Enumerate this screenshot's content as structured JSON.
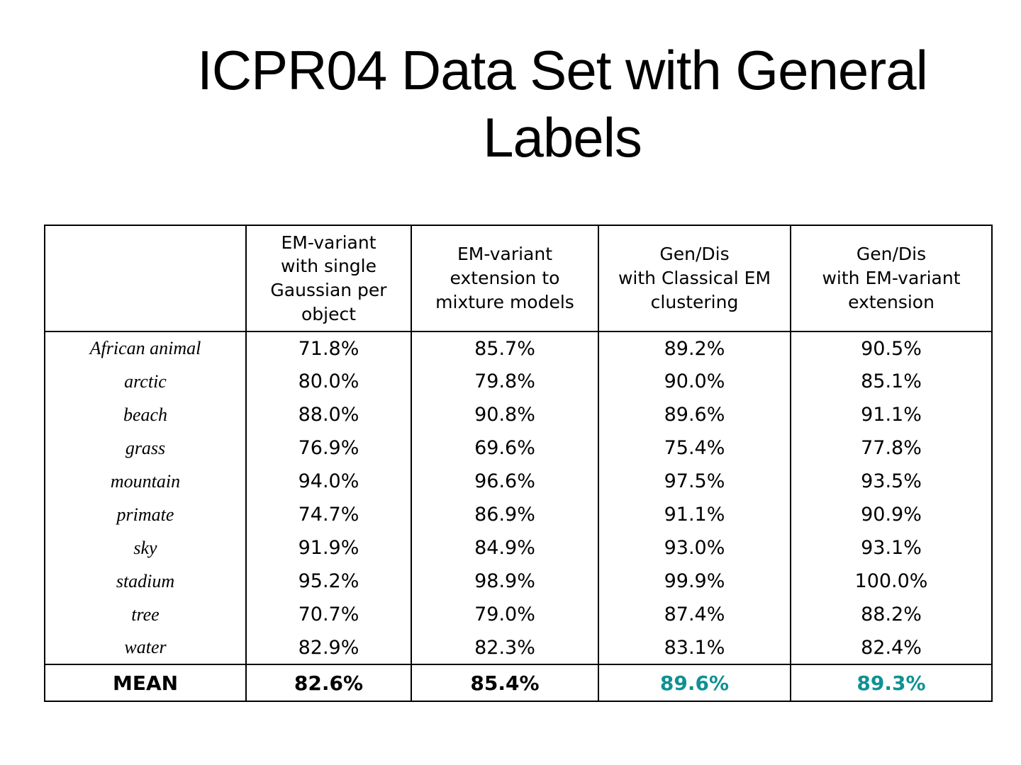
{
  "slide": {
    "title": "ICPR04 Data Set with General Labels"
  },
  "table": {
    "corner_label": "",
    "columns": [
      "EM-variant\nwith single\nGaussian per\nobject",
      "EM-variant\nextension to\nmixture models",
      "Gen/Dis\nwith Classical EM\nclustering",
      "Gen/Dis\nwith EM-variant\nextension"
    ],
    "rows": [
      {
        "label": "African animal",
        "values": [
          "71.8%",
          "85.7%",
          "89.2%",
          "90.5%"
        ]
      },
      {
        "label": "arctic",
        "values": [
          "80.0%",
          "79.8%",
          "90.0%",
          "85.1%"
        ]
      },
      {
        "label": "beach",
        "values": [
          "88.0%",
          "90.8%",
          "89.6%",
          "91.1%"
        ]
      },
      {
        "label": "grass",
        "values": [
          "76.9%",
          "69.6%",
          "75.4%",
          "77.8%"
        ]
      },
      {
        "label": "mountain",
        "values": [
          "94.0%",
          "96.6%",
          "97.5%",
          "93.5%"
        ]
      },
      {
        "label": "primate",
        "values": [
          "74.7%",
          "86.9%",
          "91.1%",
          "90.9%"
        ]
      },
      {
        "label": "sky",
        "values": [
          "91.9%",
          "84.9%",
          "93.0%",
          "93.1%"
        ]
      },
      {
        "label": "stadium",
        "values": [
          "95.2%",
          "98.9%",
          "99.9%",
          "100.0%"
        ]
      },
      {
        "label": "tree",
        "values": [
          "70.7%",
          "79.0%",
          "87.4%",
          "88.2%"
        ]
      },
      {
        "label": "water",
        "values": [
          "82.9%",
          "82.3%",
          "83.1%",
          "82.4%"
        ]
      }
    ],
    "mean_row": {
      "label": "MEAN",
      "values": [
        "82.6%",
        "85.4%",
        "89.6%",
        "89.3%"
      ]
    },
    "colors": {
      "highlight_teal": "#0f9194",
      "text_black": "#000000"
    }
  }
}
